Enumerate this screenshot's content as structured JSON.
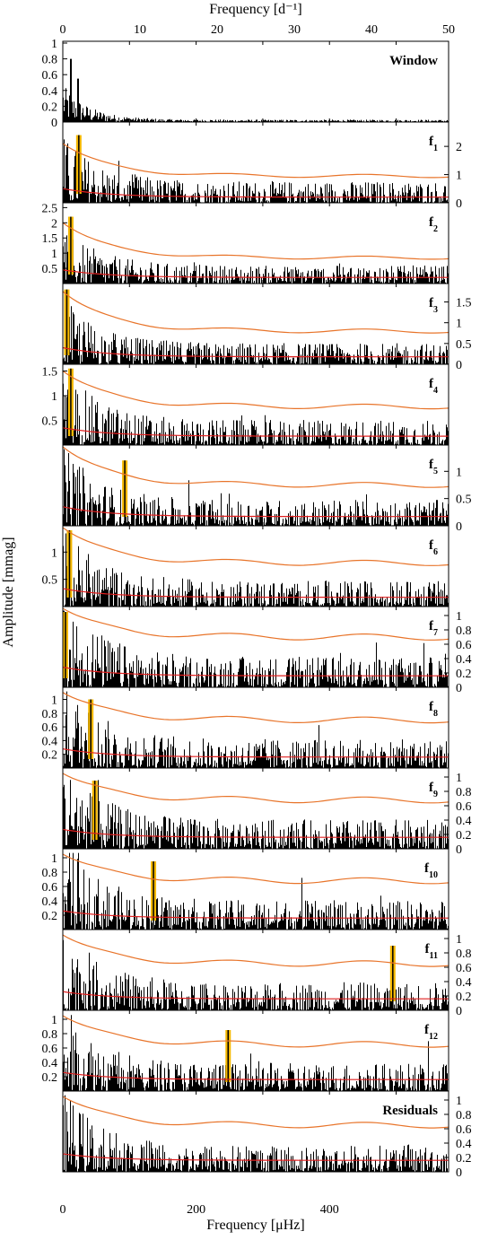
{
  "figure": {
    "top_axis_label": "Frequency [d⁻¹]",
    "bottom_axis_label": "Frequency [μHz]",
    "y_axis_label": "Amplitude [mmag]"
  },
  "chart_data": {
    "type": "line",
    "top_axis": {
      "label": "Frequency [d⁻¹]",
      "range": [
        0,
        50
      ],
      "ticks": [
        "0",
        "10",
        "20",
        "30",
        "40",
        "50"
      ]
    },
    "bottom_axis": {
      "label": "Frequency [μHz]",
      "range": [
        0,
        578.7
      ],
      "ticks": [
        "0",
        "200",
        "400"
      ]
    },
    "y_axis_label": "Amplitude [mmag]",
    "colors": {
      "spectrum": "#000000",
      "threshold_curve": "#e8742a",
      "noise_curve": "#e02020",
      "highlight": "#f5b800"
    },
    "panels": [
      {
        "label": "Window",
        "label_sub": "",
        "ylim": [
          0,
          1.0
        ],
        "yticks": [
          "0",
          "0.2",
          "0.4",
          "0.6",
          "0.8",
          "1"
        ],
        "ytick_side": "left",
        "highlight_freq": null,
        "highlight_amp": null,
        "peak_amp": 0.8,
        "noise_base": 0.05,
        "thresh_start": null,
        "thresh_end": null,
        "noise_start": null,
        "noise_end": null
      },
      {
        "label": "f",
        "label_sub": "1",
        "ylim": [
          0,
          2.8
        ],
        "yticks": [
          "0",
          "1",
          "2"
        ],
        "ytick_side": "right",
        "highlight_freq": 24,
        "highlight_amp": 2.4,
        "peak_amp": 2.4,
        "noise_base": 0.45,
        "thresh_start": 2.1,
        "thresh_end": 0.95,
        "noise_start": 0.5,
        "noise_end": 0.2
      },
      {
        "label": "f",
        "label_sub": "2",
        "ylim": [
          0,
          2.6
        ],
        "yticks": [
          "0.5",
          "1",
          "1.5",
          "2",
          "2.5"
        ],
        "ytick_side": "left",
        "highlight_freq": 12,
        "highlight_amp": 2.2,
        "peak_amp": 2.2,
        "noise_base": 0.35,
        "thresh_start": 2.0,
        "thresh_end": 0.85,
        "noise_start": 0.45,
        "noise_end": 0.2
      },
      {
        "label": "f",
        "label_sub": "3",
        "ylim": [
          0,
          1.9
        ],
        "yticks": [
          "0",
          "0.5",
          "1",
          "1.5"
        ],
        "ytick_side": "right",
        "highlight_freq": 6,
        "highlight_amp": 1.8,
        "peak_amp": 1.8,
        "noise_base": 0.3,
        "thresh_start": 1.75,
        "thresh_end": 0.8,
        "noise_start": 0.4,
        "noise_end": 0.18
      },
      {
        "label": "f",
        "label_sub": "4",
        "ylim": [
          0,
          1.6
        ],
        "yticks": [
          "0.5",
          "1",
          "1.5"
        ],
        "ytick_side": "left",
        "highlight_freq": 12,
        "highlight_amp": 1.55,
        "peak_amp": 1.55,
        "noise_base": 0.3,
        "thresh_start": 1.5,
        "thresh_end": 0.78,
        "noise_start": 0.35,
        "noise_end": 0.18
      },
      {
        "label": "f",
        "label_sub": "5",
        "ylim": [
          0,
          1.45
        ],
        "yticks": [
          "0",
          "0.5",
          "1"
        ],
        "ytick_side": "right",
        "highlight_freq": 93,
        "highlight_amp": 1.2,
        "peak_amp": 1.3,
        "noise_base": 0.28,
        "thresh_start": 1.45,
        "thresh_end": 0.75,
        "noise_start": 0.35,
        "noise_end": 0.17
      },
      {
        "label": "f",
        "label_sub": "6",
        "ylim": [
          0,
          1.45
        ],
        "yticks": [
          "0.5",
          "1"
        ],
        "ytick_side": "left",
        "highlight_freq": 10,
        "highlight_amp": 1.4,
        "peak_amp": 1.4,
        "noise_base": 0.28,
        "thresh_start": 1.45,
        "thresh_end": 0.8,
        "noise_start": 0.33,
        "noise_end": 0.17
      },
      {
        "label": "f",
        "label_sub": "7",
        "ylim": [
          0,
          1.1
        ],
        "yticks": [
          "0",
          "0.2",
          "0.4",
          "0.6",
          "0.8",
          "1"
        ],
        "ytick_side": "right",
        "highlight_freq": 4,
        "highlight_amp": 1.05,
        "peak_amp": 1.1,
        "noise_base": 0.25,
        "thresh_start": 1.1,
        "thresh_end": 0.7,
        "noise_start": 0.28,
        "noise_end": 0.16
      },
      {
        "label": "f",
        "label_sub": "8",
        "ylim": [
          0,
          1.15
        ],
        "yticks": [
          "0.2",
          "0.4",
          "0.6",
          "0.8",
          "1"
        ],
        "ytick_side": "left",
        "highlight_freq": 42,
        "highlight_amp": 1.0,
        "peak_amp": 1.05,
        "noise_base": 0.25,
        "thresh_start": 1.1,
        "thresh_end": 0.7,
        "noise_start": 0.28,
        "noise_end": 0.16
      },
      {
        "label": "f",
        "label_sub": "9",
        "ylim": [
          0,
          1.1
        ],
        "yticks": [
          "0",
          "0.2",
          "0.4",
          "0.6",
          "0.8",
          "1"
        ],
        "ytick_side": "right",
        "highlight_freq": 48,
        "highlight_amp": 0.95,
        "peak_amp": 1.0,
        "noise_base": 0.24,
        "thresh_start": 1.05,
        "thresh_end": 0.68,
        "noise_start": 0.27,
        "noise_end": 0.16
      },
      {
        "label": "f",
        "label_sub": "10",
        "ylim": [
          0,
          1.1
        ],
        "yticks": [
          "0.2",
          "0.4",
          "0.6",
          "0.8",
          "1"
        ],
        "ytick_side": "left",
        "highlight_freq": 136,
        "highlight_amp": 0.95,
        "peak_amp": 1.0,
        "noise_base": 0.24,
        "thresh_start": 1.05,
        "thresh_end": 0.68,
        "noise_start": 0.26,
        "noise_end": 0.16
      },
      {
        "label": "f",
        "label_sub": "11",
        "ylim": [
          0,
          1.1
        ],
        "yticks": [
          "0",
          "0.2",
          "0.4",
          "0.6",
          "0.8",
          "1"
        ],
        "ytick_side": "right",
        "highlight_freq": 495,
        "highlight_amp": 0.9,
        "peak_amp": 0.95,
        "noise_base": 0.23,
        "thresh_start": 1.05,
        "thresh_end": 0.65,
        "noise_start": 0.26,
        "noise_end": 0.16
      },
      {
        "label": "f",
        "label_sub": "12",
        "ylim": [
          0,
          1.1
        ],
        "yticks": [
          "0.2",
          "0.4",
          "0.6",
          "0.8",
          "1"
        ],
        "ytick_side": "left",
        "highlight_freq": 248,
        "highlight_amp": 0.85,
        "peak_amp": 0.9,
        "noise_base": 0.23,
        "thresh_start": 1.05,
        "thresh_end": 0.65,
        "noise_start": 0.26,
        "noise_end": 0.16
      },
      {
        "label": "Residuals",
        "label_sub": "",
        "ylim": [
          0,
          1.1
        ],
        "yticks": [
          "0",
          "0.2",
          "0.4",
          "0.6",
          "0.8",
          "1"
        ],
        "ytick_side": "right",
        "highlight_freq": null,
        "highlight_amp": null,
        "peak_amp": 0.85,
        "noise_base": 0.22,
        "thresh_start": 1.05,
        "thresh_end": 0.65,
        "noise_start": 0.25,
        "noise_end": 0.16
      }
    ]
  }
}
